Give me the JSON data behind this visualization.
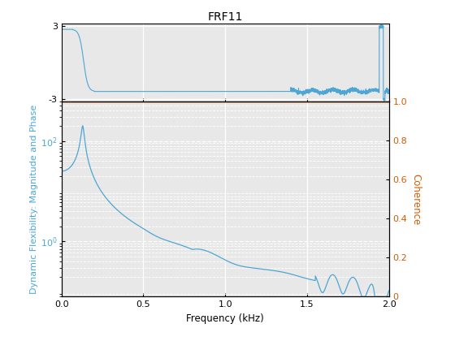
{
  "title": "FRF11",
  "xlabel": "Frequency (kHz)",
  "ylabel_bottom_left": "Dynamic Flexibility: Magnitude and Phase",
  "ylabel_bottom_right": "Coherence",
  "xlim": [
    0,
    2.0
  ],
  "phase_ylim": [
    -3.2,
    3.2
  ],
  "phase_yticks": [
    3,
    -3
  ],
  "coherence_ylim": [
    0,
    1.0
  ],
  "coherence_yticks": [
    0,
    0.2,
    0.4,
    0.6,
    0.8,
    1.0
  ],
  "mag_ylim": [
    0.08,
    600
  ],
  "line_color_blue": "#4DA6D4",
  "line_color_orange": "#D45A00",
  "background_color": "#E8E8E8",
  "grid_color": "#FFFFFF",
  "title_fontsize": 10,
  "label_fontsize": 8.5,
  "tick_fontsize": 8
}
